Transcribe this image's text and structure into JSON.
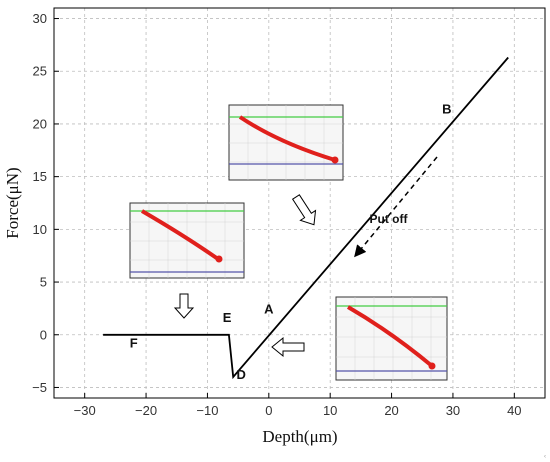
{
  "chart_data": {
    "type": "line",
    "xlabel": "Depth(μm)",
    "ylabel": "Force(μN)",
    "xlim": [
      -35,
      45
    ],
    "ylim": [
      -6,
      31
    ],
    "xticks": [
      -30,
      -20,
      -10,
      0,
      10,
      20,
      30,
      40
    ],
    "yticks": [
      -5,
      0,
      5,
      10,
      15,
      20,
      25,
      30
    ],
    "xtick_labels": [
      "−30",
      "−20",
      "−10",
      "0",
      "10",
      "20",
      "30",
      "40"
    ],
    "ytick_labels": [
      "−5",
      "0",
      "5",
      "10",
      "15",
      "20",
      "25",
      "30"
    ],
    "grid": true,
    "series": [
      {
        "color": "#000000",
        "x": [
          -27,
          -7.5,
          -6.5,
          -5.8,
          39
        ],
        "y": [
          0,
          0,
          0,
          -4,
          26.3
        ]
      }
    ],
    "point_labels": [
      {
        "text": "A",
        "x": 0,
        "y": 2
      },
      {
        "text": "B",
        "x": 29,
        "y": 21
      },
      {
        "text": "D",
        "x": -4.5,
        "y": -4.2
      },
      {
        "text": "E",
        "x": -6.8,
        "y": 1.2
      },
      {
        "text": "F",
        "x": -22,
        "y": -1.2
      }
    ],
    "annotations": [
      {
        "text": "Put off",
        "x": 19.5,
        "y": 10.6
      }
    ]
  }
}
